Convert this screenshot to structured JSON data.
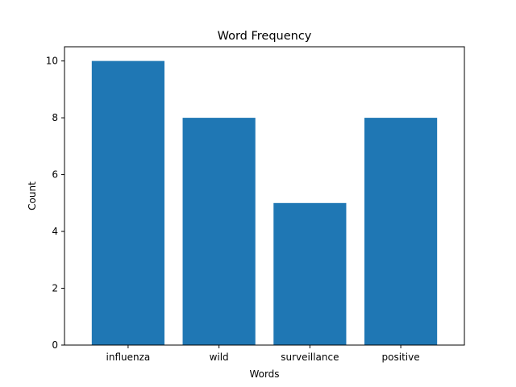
{
  "chart_data": {
    "type": "bar",
    "title": "Word Frequency",
    "xlabel": "Words",
    "ylabel": "Count",
    "categories": [
      "influenza",
      "wild",
      "surveillance",
      "positive"
    ],
    "values": [
      10,
      8,
      5,
      8
    ],
    "ylim": [
      0,
      10.5
    ],
    "yticks": [
      0,
      2,
      4,
      6,
      8,
      10
    ],
    "grid": false,
    "bar_color": "#1f77b4"
  }
}
